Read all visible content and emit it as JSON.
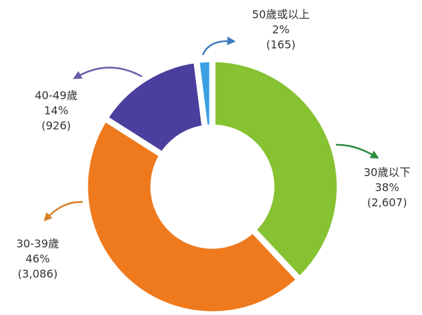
{
  "chart_data": {
    "type": "donut",
    "categories": [
      "30歲以下",
      "30-39歲",
      "40-49歲",
      "50歲或以上"
    ],
    "values": [
      38,
      46,
      14,
      2
    ],
    "value_labels": [
      "38%",
      "46%",
      "14%",
      "2%"
    ],
    "counts": [
      2607,
      3086,
      926,
      165
    ],
    "count_labels": [
      "(2,607)",
      "(3,086)",
      "(926)",
      "(165)"
    ],
    "colors": [
      "#86c232",
      "#ef7a1e",
      "#4a3f9e",
      "#3aa0e2"
    ]
  }
}
